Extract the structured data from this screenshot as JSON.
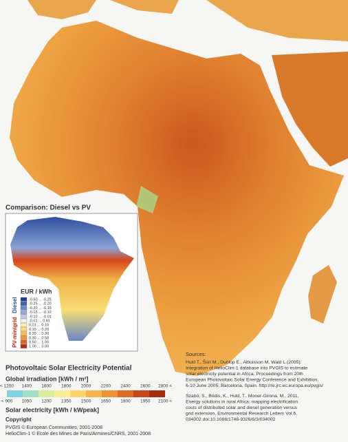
{
  "inset": {
    "title": "Comparison: Diesel vs PV",
    "legend_title": "EUR / kWh",
    "legend": [
      {
        "label": "-0.50 ... -0.25",
        "color": "#1f3f8f"
      },
      {
        "label": "-0.25 ... -0.20",
        "color": "#3f62b0"
      },
      {
        "label": "-0.20 ... -0.15",
        "color": "#6a88c8"
      },
      {
        "label": "-0.15 ... -0.10",
        "color": "#93abd9"
      },
      {
        "label": "-0.10 ... -0.01",
        "color": "#bccdea"
      },
      {
        "label": "-0.01 ... 0.01",
        "color": "#eef0f2"
      },
      {
        "label": "0.01 ... 0.10",
        "color": "#fbf3b3"
      },
      {
        "label": "0.10 ... 0.20",
        "color": "#f8df76"
      },
      {
        "label": "0.20 ... 0.30",
        "color": "#f5c04a"
      },
      {
        "label": "0.30 ... 0.50",
        "color": "#ef9a30"
      },
      {
        "label": "0.50 ... 1.00",
        "color": "#e2621f"
      },
      {
        "label": "1.00 ... 3.00",
        "color": "#c02a14"
      }
    ],
    "group_top": "Diesel",
    "group_bottom": "PV-minigrid"
  },
  "legend": {
    "title": "Photovoltaic Solar Electricity Potential",
    "irradiation_label": "Global irradiation [kWh / m²]",
    "irradiation_ticks": [
      "< 1200",
      "1400",
      "1600",
      "1800",
      "2000",
      "2200",
      "2400",
      "2600",
      "2800 <"
    ],
    "electricity_ticks": [
      "< 900",
      "1050",
      "1200",
      "1350",
      "1500",
      "1650",
      "1800",
      "1950",
      "2100 <"
    ],
    "electricity_label": "Solar electricity [kWh / kWpeak]",
    "colors": [
      "#7fd3e4",
      "#a6e0c4",
      "#d7ee9e",
      "#fbee95",
      "#fdd56c",
      "#f8b44a",
      "#ef9235",
      "#e06b24",
      "#c9461a",
      "#a82c14"
    ]
  },
  "copyright": {
    "title": "Copyright",
    "lines": [
      "PVGIS © European Communities, 2001-2008",
      "HelioClim-1 © Ecole des Mines de Paris/Armines/CNRS, 2001-2008"
    ]
  },
  "sources": {
    "title": "Sources:",
    "items": [
      {
        "lines": [
          "Huld T., Šúri M., Dunlop E., Albuisson M, Wald L.(2005):",
          "Integration of HelioClim-1 database into PVGIS to estimate",
          "solar electricity potential in Africa. Proceedings from 20th",
          "European Photovoltaic Solar Energy Conference and Exhibition,",
          "6-10 June 2005, Barcelona, Spain. http://re.jrc.ec.europa.eu/pvgis/"
        ]
      },
      {
        "lines": [
          "Szabó, S., Bódis, K., Huld, T., Moner-Girona, M., 2011,",
          "Energy solutions in rural Africa: mapping electrification",
          "costs of distributed solar and diesel generation versus",
          "grid extension, Environmental Research Letters Vol.6,",
          "034002 doi:10.1088/1748-9326/6/3/034002"
        ]
      }
    ]
  }
}
